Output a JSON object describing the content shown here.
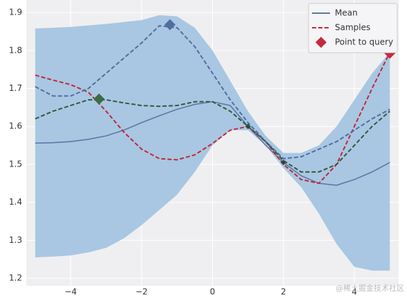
{
  "chart_data": {
    "type": "line",
    "x": [
      -5,
      -4.5,
      -4,
      -3.5,
      -3,
      -2.5,
      -2,
      -1.5,
      -1,
      -0.5,
      0,
      0.5,
      1,
      1.5,
      2,
      2.5,
      3,
      3.5,
      4,
      4.5,
      5
    ],
    "band": {
      "color": "#a9c7e2",
      "upper": [
        1.858,
        1.86,
        1.862,
        1.866,
        1.87,
        1.875,
        1.88,
        1.893,
        1.89,
        1.86,
        1.8,
        1.72,
        1.64,
        1.575,
        1.53,
        1.53,
        1.55,
        1.6,
        1.67,
        1.74,
        1.795
      ],
      "lower": [
        1.255,
        1.257,
        1.26,
        1.268,
        1.28,
        1.305,
        1.34,
        1.38,
        1.42,
        1.48,
        1.55,
        1.59,
        1.59,
        1.55,
        1.49,
        1.44,
        1.37,
        1.29,
        1.23,
        1.22,
        1.22
      ]
    },
    "series": [
      {
        "name": "Mean",
        "color": "#5b78a8",
        "dashed": false,
        "values": [
          1.556,
          1.557,
          1.56,
          1.566,
          1.575,
          1.59,
          1.61,
          1.628,
          1.645,
          1.658,
          1.665,
          1.655,
          1.6,
          1.55,
          1.505,
          1.47,
          1.45,
          1.445,
          1.46,
          1.48,
          1.505
        ]
      },
      {
        "name": "Samples",
        "color": "#c0283a",
        "dashed": true,
        "values": [
          1.735,
          1.722,
          1.71,
          1.69,
          1.64,
          1.585,
          1.54,
          1.515,
          1.512,
          1.525,
          1.555,
          1.59,
          1.6,
          1.56,
          1.5,
          1.46,
          1.45,
          1.5,
          1.6,
          1.7,
          1.795
        ]
      },
      {
        "color": "#4f6fa0",
        "dashed": true,
        "values": [
          1.705,
          1.68,
          1.68,
          1.7,
          1.74,
          1.78,
          1.82,
          1.865,
          1.86,
          1.81,
          1.74,
          1.67,
          1.61,
          1.56,
          1.515,
          1.52,
          1.54,
          1.56,
          1.59,
          1.62,
          1.645
        ]
      },
      {
        "color": "#2f5a3c",
        "dashed": true,
        "values": [
          1.62,
          1.64,
          1.655,
          1.67,
          1.67,
          1.662,
          1.655,
          1.653,
          1.655,
          1.665,
          1.665,
          1.64,
          1.6,
          1.56,
          1.51,
          1.48,
          1.48,
          1.5,
          1.55,
          1.6,
          1.64
        ]
      }
    ],
    "points": [
      {
        "name": "Point to query",
        "color": "#c8283c",
        "size": 8,
        "x": [
          5
        ],
        "values": [
          1.793
        ]
      },
      {
        "color": "#4f6fa0",
        "size": 8,
        "x": [
          -1.2
        ],
        "values": [
          1.868
        ]
      },
      {
        "color": "#3d6b46",
        "size": 8,
        "x": [
          -3.2
        ],
        "values": [
          1.672
        ]
      },
      {
        "color": "#2f4a3a",
        "size": 4,
        "x": [
          1,
          2
        ],
        "values": [
          1.6,
          1.505
        ]
      }
    ],
    "xlim": [
      -5.25,
      5.25
    ],
    "ylim": [
      1.18,
      1.933
    ],
    "xticks": [
      {
        "value": -4,
        "label": "−4"
      },
      {
        "value": -2,
        "label": "−2"
      },
      0,
      2,
      4
    ],
    "yticks": [
      1.2,
      1.3,
      1.4,
      1.5,
      1.6,
      1.7,
      1.8,
      1.9
    ],
    "grid": true,
    "legend": "upper right",
    "watermark": "@稀土掘金技术社区"
  }
}
